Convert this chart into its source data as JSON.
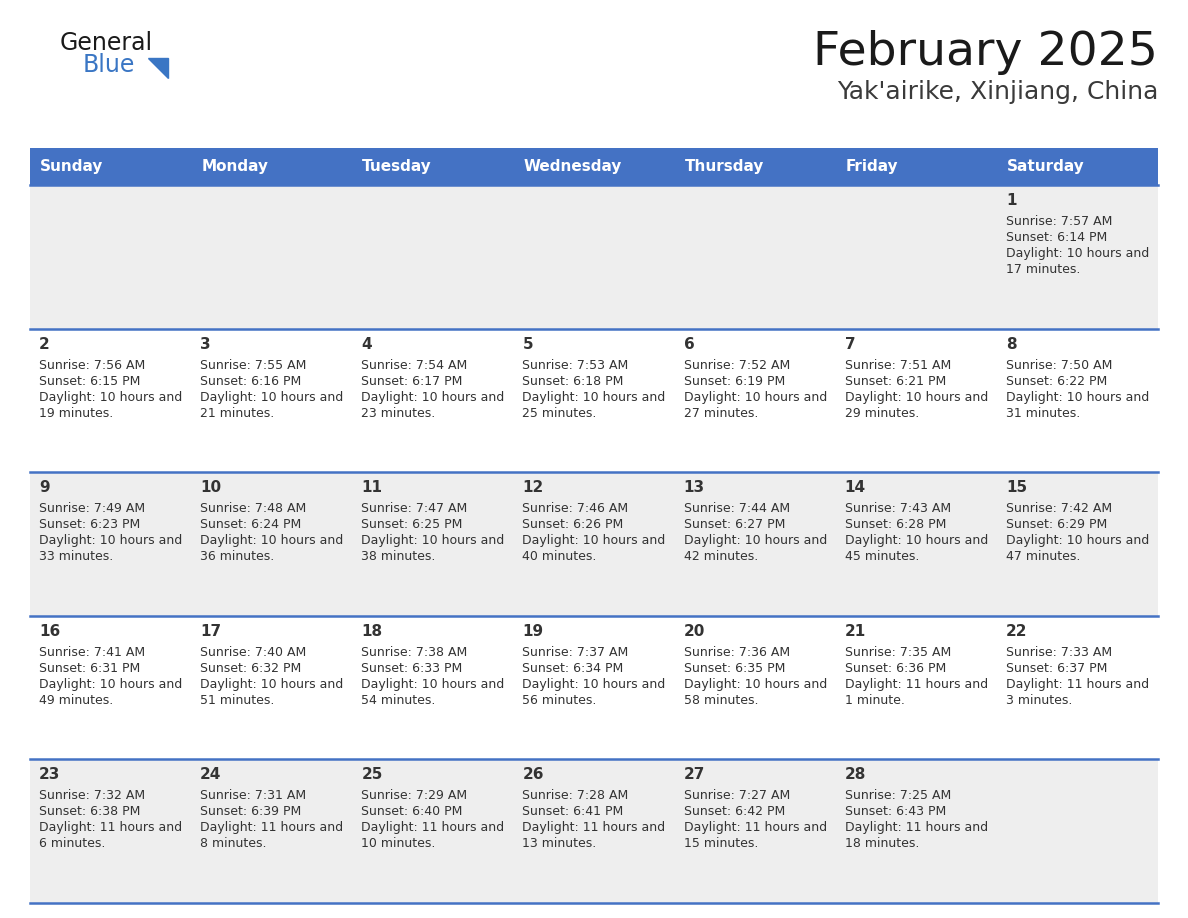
{
  "title": "February 2025",
  "subtitle": "Yak'airike, Xinjiang, China",
  "header_color": "#4472C4",
  "header_text_color": "#FFFFFF",
  "day_names": [
    "Sunday",
    "Monday",
    "Tuesday",
    "Wednesday",
    "Thursday",
    "Friday",
    "Saturday"
  ],
  "bg_color": "#FFFFFF",
  "cell_bg_row0": "#EFEFEF",
  "cell_bg_row1": "#FFFFFF",
  "cell_bg_row2": "#EFEFEF",
  "cell_bg_row3": "#FFFFFF",
  "cell_bg_row4": "#EFEFEF",
  "divider_color": "#4472C4",
  "text_color": "#333333",
  "num_color": "#333333",
  "days": [
    {
      "day": 1,
      "col": 6,
      "row": 0,
      "sunrise": "7:57 AM",
      "sunset": "6:14 PM",
      "daylight": "10 hours and 17 minutes."
    },
    {
      "day": 2,
      "col": 0,
      "row": 1,
      "sunrise": "7:56 AM",
      "sunset": "6:15 PM",
      "daylight": "10 hours and 19 minutes."
    },
    {
      "day": 3,
      "col": 1,
      "row": 1,
      "sunrise": "7:55 AM",
      "sunset": "6:16 PM",
      "daylight": "10 hours and 21 minutes."
    },
    {
      "day": 4,
      "col": 2,
      "row": 1,
      "sunrise": "7:54 AM",
      "sunset": "6:17 PM",
      "daylight": "10 hours and 23 minutes."
    },
    {
      "day": 5,
      "col": 3,
      "row": 1,
      "sunrise": "7:53 AM",
      "sunset": "6:18 PM",
      "daylight": "10 hours and 25 minutes."
    },
    {
      "day": 6,
      "col": 4,
      "row": 1,
      "sunrise": "7:52 AM",
      "sunset": "6:19 PM",
      "daylight": "10 hours and 27 minutes."
    },
    {
      "day": 7,
      "col": 5,
      "row": 1,
      "sunrise": "7:51 AM",
      "sunset": "6:21 PM",
      "daylight": "10 hours and 29 minutes."
    },
    {
      "day": 8,
      "col": 6,
      "row": 1,
      "sunrise": "7:50 AM",
      "sunset": "6:22 PM",
      "daylight": "10 hours and 31 minutes."
    },
    {
      "day": 9,
      "col": 0,
      "row": 2,
      "sunrise": "7:49 AM",
      "sunset": "6:23 PM",
      "daylight": "10 hours and 33 minutes."
    },
    {
      "day": 10,
      "col": 1,
      "row": 2,
      "sunrise": "7:48 AM",
      "sunset": "6:24 PM",
      "daylight": "10 hours and 36 minutes."
    },
    {
      "day": 11,
      "col": 2,
      "row": 2,
      "sunrise": "7:47 AM",
      "sunset": "6:25 PM",
      "daylight": "10 hours and 38 minutes."
    },
    {
      "day": 12,
      "col": 3,
      "row": 2,
      "sunrise": "7:46 AM",
      "sunset": "6:26 PM",
      "daylight": "10 hours and 40 minutes."
    },
    {
      "day": 13,
      "col": 4,
      "row": 2,
      "sunrise": "7:44 AM",
      "sunset": "6:27 PM",
      "daylight": "10 hours and 42 minutes."
    },
    {
      "day": 14,
      "col": 5,
      "row": 2,
      "sunrise": "7:43 AM",
      "sunset": "6:28 PM",
      "daylight": "10 hours and 45 minutes."
    },
    {
      "day": 15,
      "col": 6,
      "row": 2,
      "sunrise": "7:42 AM",
      "sunset": "6:29 PM",
      "daylight": "10 hours and 47 minutes."
    },
    {
      "day": 16,
      "col": 0,
      "row": 3,
      "sunrise": "7:41 AM",
      "sunset": "6:31 PM",
      "daylight": "10 hours and 49 minutes."
    },
    {
      "day": 17,
      "col": 1,
      "row": 3,
      "sunrise": "7:40 AM",
      "sunset": "6:32 PM",
      "daylight": "10 hours and 51 minutes."
    },
    {
      "day": 18,
      "col": 2,
      "row": 3,
      "sunrise": "7:38 AM",
      "sunset": "6:33 PM",
      "daylight": "10 hours and 54 minutes."
    },
    {
      "day": 19,
      "col": 3,
      "row": 3,
      "sunrise": "7:37 AM",
      "sunset": "6:34 PM",
      "daylight": "10 hours and 56 minutes."
    },
    {
      "day": 20,
      "col": 4,
      "row": 3,
      "sunrise": "7:36 AM",
      "sunset": "6:35 PM",
      "daylight": "10 hours and 58 minutes."
    },
    {
      "day": 21,
      "col": 5,
      "row": 3,
      "sunrise": "7:35 AM",
      "sunset": "6:36 PM",
      "daylight": "11 hours and 1 minute."
    },
    {
      "day": 22,
      "col": 6,
      "row": 3,
      "sunrise": "7:33 AM",
      "sunset": "6:37 PM",
      "daylight": "11 hours and 3 minutes."
    },
    {
      "day": 23,
      "col": 0,
      "row": 4,
      "sunrise": "7:32 AM",
      "sunset": "6:38 PM",
      "daylight": "11 hours and 6 minutes."
    },
    {
      "day": 24,
      "col": 1,
      "row": 4,
      "sunrise": "7:31 AM",
      "sunset": "6:39 PM",
      "daylight": "11 hours and 8 minutes."
    },
    {
      "day": 25,
      "col": 2,
      "row": 4,
      "sunrise": "7:29 AM",
      "sunset": "6:40 PM",
      "daylight": "11 hours and 10 minutes."
    },
    {
      "day": 26,
      "col": 3,
      "row": 4,
      "sunrise": "7:28 AM",
      "sunset": "6:41 PM",
      "daylight": "11 hours and 13 minutes."
    },
    {
      "day": 27,
      "col": 4,
      "row": 4,
      "sunrise": "7:27 AM",
      "sunset": "6:42 PM",
      "daylight": "11 hours and 15 minutes."
    },
    {
      "day": 28,
      "col": 5,
      "row": 4,
      "sunrise": "7:25 AM",
      "sunset": "6:43 PM",
      "daylight": "11 hours and 18 minutes."
    }
  ]
}
